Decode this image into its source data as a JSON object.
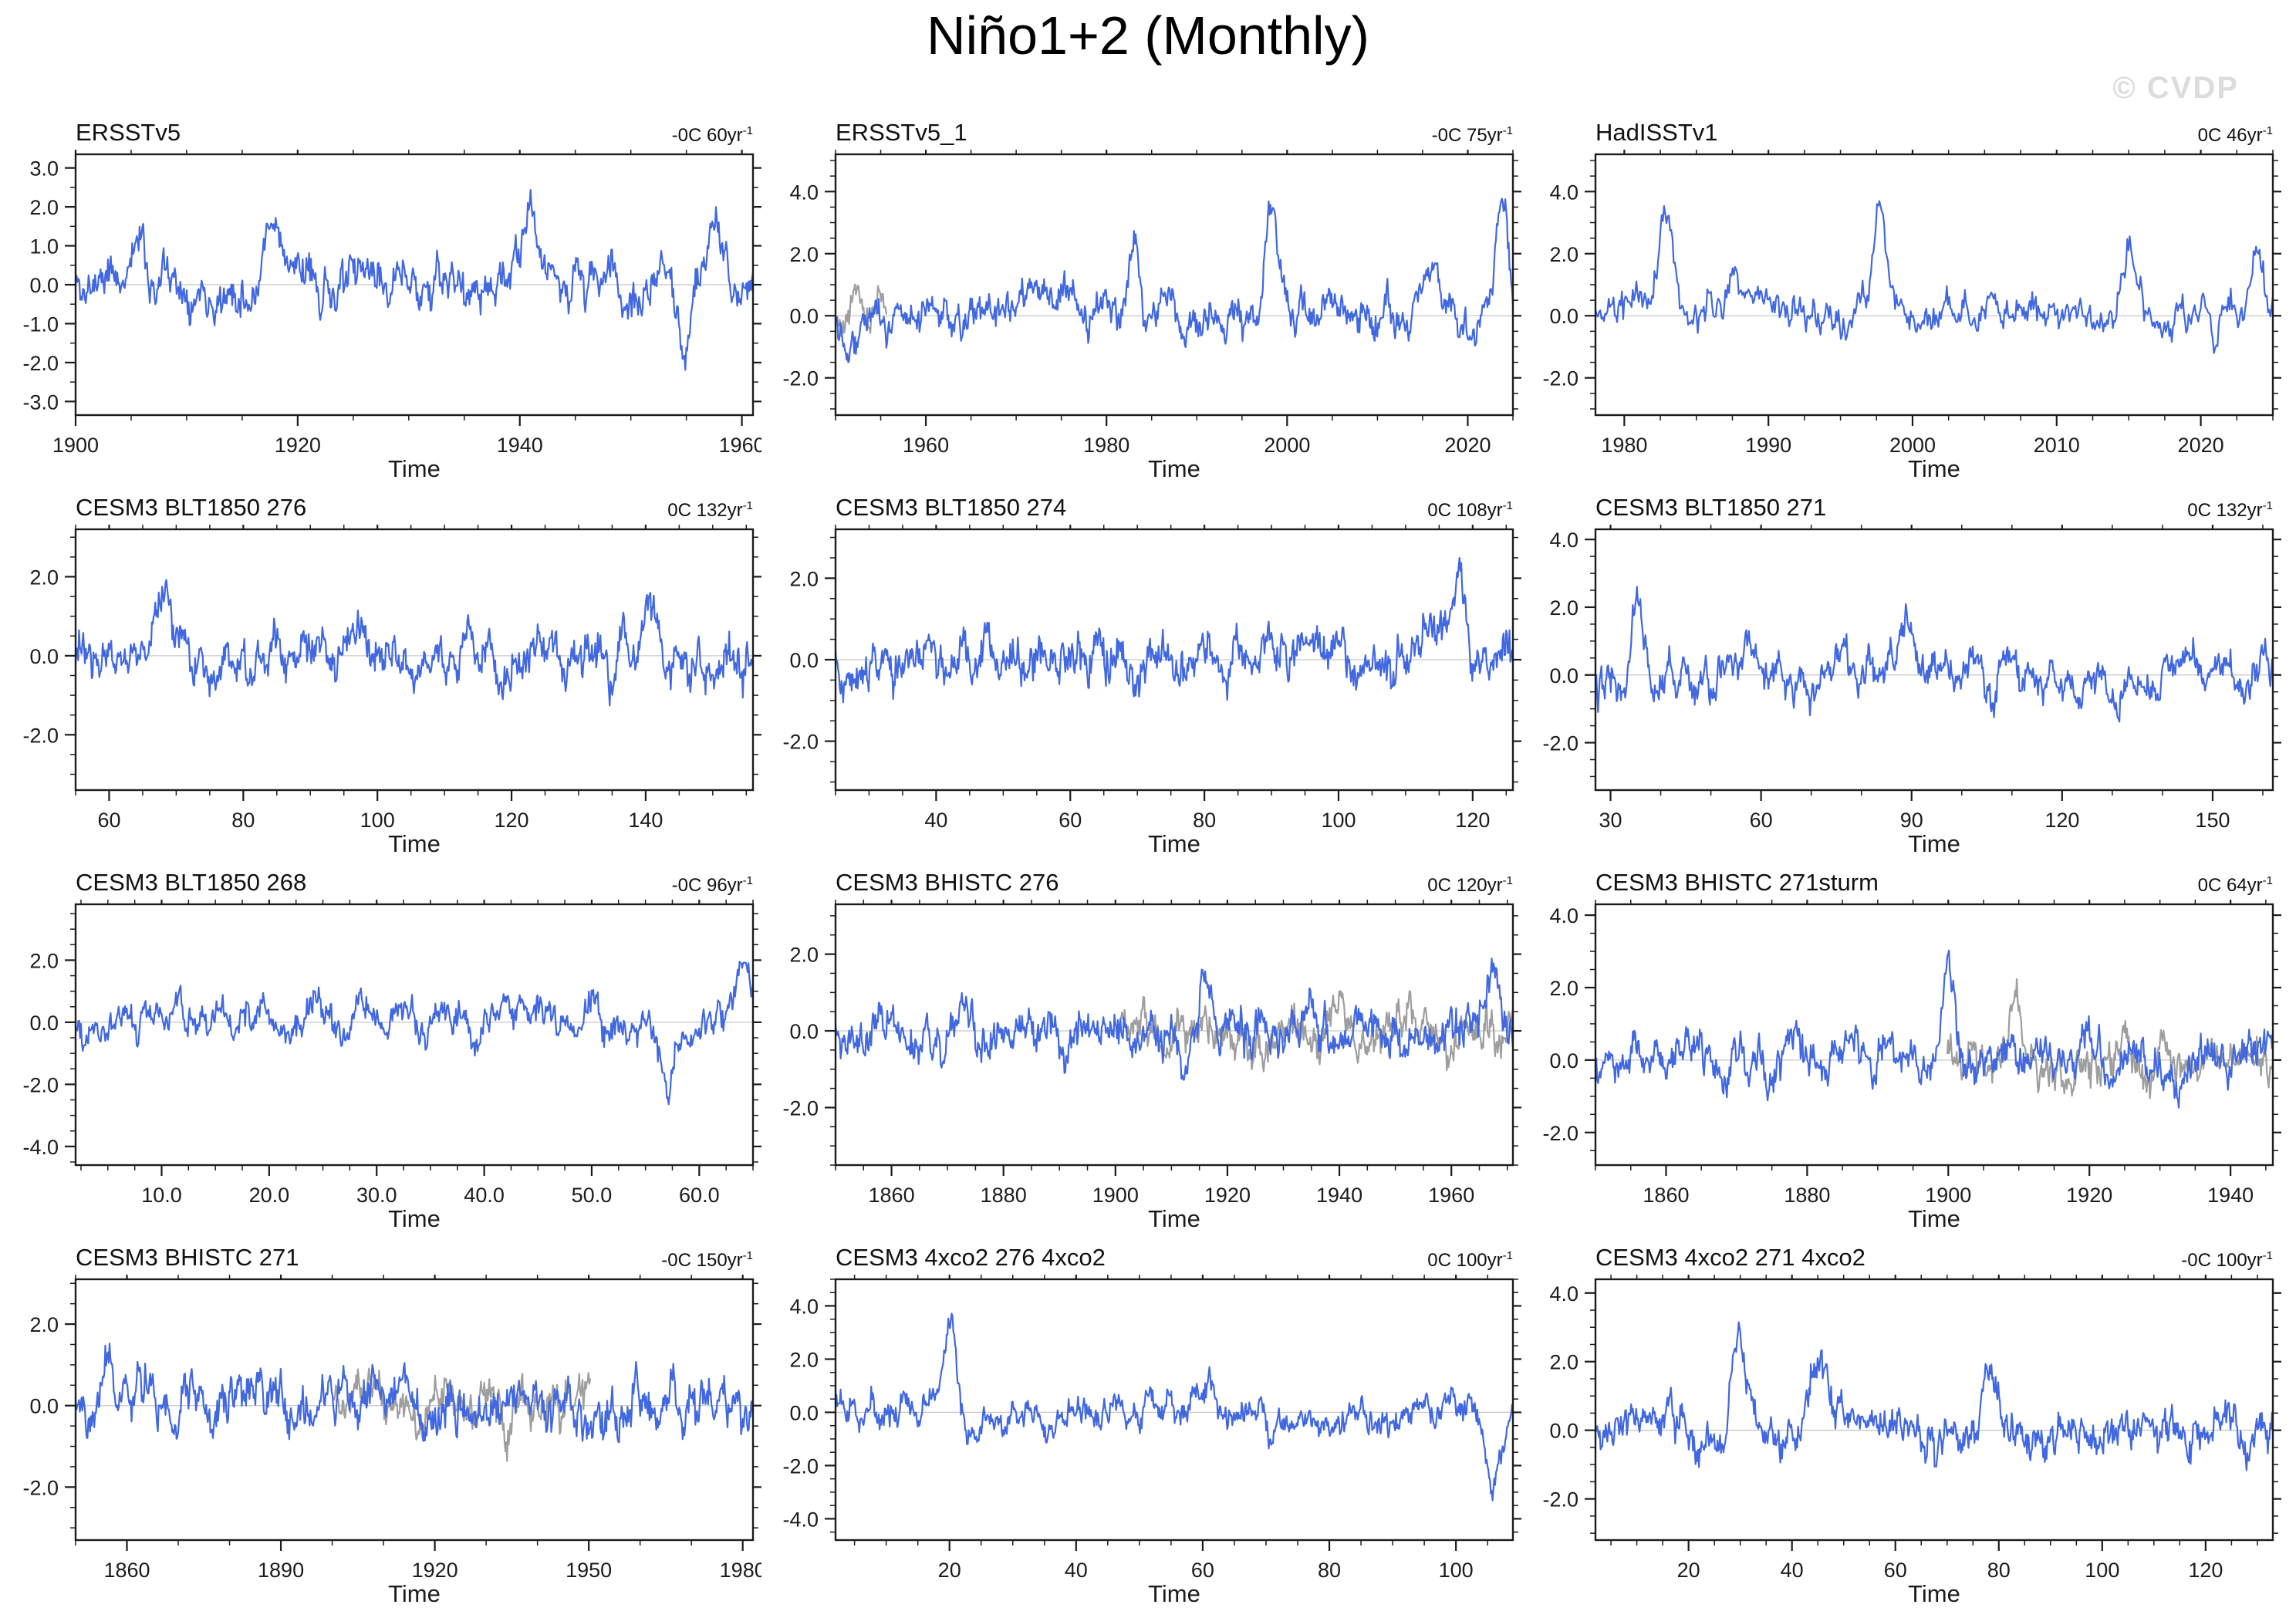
{
  "header": {
    "title": "Niño1+2 (Monthly)",
    "watermark": "© CVDP"
  },
  "colors": {
    "line_primary": "#4168e0",
    "line_secondary": "#9e9e9e",
    "zero_line": "#c8c8c8",
    "axis": "#1c1c1c",
    "text": "#1c1c1c",
    "watermark": "#dcdcdc"
  },
  "chart_data": [
    {
      "type": "line",
      "name": "ERSSTv5",
      "trend": "-0C 60yr",
      "trend_sup": "-1",
      "xlabel": "Time",
      "x_range": [
        1900,
        1961
      ],
      "x_tick_values": [
        1900,
        1920,
        1940,
        1960
      ],
      "x_ticks": [
        "1900",
        "1920",
        "1940",
        "1960"
      ],
      "x_minor_step": 5,
      "y_range": [
        -3.35,
        3.35
      ],
      "y_tick_values": [
        3,
        2,
        1,
        0,
        -1,
        -2,
        -3
      ],
      "y_ticks": [
        "3.0",
        "2.0",
        "1.0",
        "0.0",
        "-1.0",
        "-2.0",
        "-3.0"
      ],
      "y_minor_step": 0.5,
      "series": {
        "seed": 11,
        "n": 732,
        "ar": 0.88,
        "sigma": 0.45,
        "jitter": 0.5,
        "peaks": [
          {
            "pos": 0.09,
            "amp": 1.2,
            "w": 0.01
          },
          {
            "pos": 0.29,
            "amp": 2.0,
            "w": 0.012
          },
          {
            "pos": 0.67,
            "amp": 1.4,
            "w": 0.012
          },
          {
            "pos": 0.9,
            "amp": -1.4,
            "w": 0.008
          },
          {
            "pos": 0.94,
            "amp": 1.6,
            "w": 0.01
          }
        ]
      },
      "gray": null
    },
    {
      "type": "line",
      "name": "ERSSTv5_1",
      "trend": "-0C 75yr",
      "trend_sup": "-1",
      "xlabel": "Time",
      "x_range": [
        1950,
        2025
      ],
      "x_tick_values": [
        1960,
        1980,
        2000,
        2020
      ],
      "x_ticks": [
        "1960",
        "1980",
        "2000",
        "2020"
      ],
      "x_minor_step": 5,
      "y_range": [
        -3.2,
        5.2
      ],
      "y_tick_values": [
        4,
        2,
        0,
        -2
      ],
      "y_ticks": [
        "4.0",
        "2.0",
        "0.0",
        "-2.0"
      ],
      "y_minor_step": 0.5,
      "series": {
        "seed": 22,
        "n": 800,
        "ar": 0.88,
        "sigma": 0.45,
        "jitter": 0.5,
        "peaks": [
          {
            "pos": 0.3,
            "amp": 1.6,
            "w": 0.012
          },
          {
            "pos": 0.44,
            "amp": 3.2,
            "w": 0.009
          },
          {
            "pos": 0.645,
            "amp": 3.3,
            "w": 0.009
          },
          {
            "pos": 0.88,
            "amp": 1.6,
            "w": 0.012
          },
          {
            "pos": 0.985,
            "amp": 3.1,
            "w": 0.008
          }
        ]
      },
      "gray": {
        "seed": 202,
        "frac": [
          0.0,
          0.075
        ],
        "peaks": []
      }
    },
    {
      "type": "line",
      "name": "HadISSTv1",
      "trend": "0C 46yr",
      "trend_sup": "-1",
      "xlabel": "Time",
      "x_range": [
        1978,
        2025
      ],
      "x_tick_values": [
        1980,
        1990,
        2000,
        2010,
        2020
      ],
      "x_ticks": [
        "1980",
        "1990",
        "2000",
        "2010",
        "2020"
      ],
      "x_minor_step": 2.5,
      "y_range": [
        -3.2,
        5.2
      ],
      "y_tick_values": [
        4,
        2,
        0,
        -2
      ],
      "y_ticks": [
        "4.0",
        "2.0",
        "0.0",
        "-2.0"
      ],
      "y_minor_step": 0.5,
      "series": {
        "seed": 33,
        "n": 564,
        "ar": 0.88,
        "sigma": 0.45,
        "jitter": 0.5,
        "peaks": [
          {
            "pos": 0.105,
            "amp": 3.6,
            "w": 0.01
          },
          {
            "pos": 0.205,
            "amp": 1.5,
            "w": 0.012
          },
          {
            "pos": 0.42,
            "amp": 3.7,
            "w": 0.009
          },
          {
            "pos": 0.79,
            "amp": 1.9,
            "w": 0.012
          },
          {
            "pos": 0.975,
            "amp": 2.0,
            "w": 0.008
          }
        ]
      },
      "gray": null
    },
    {
      "type": "line",
      "name": "CESM3 BLT1850 276",
      "trend": "0C 132yr",
      "trend_sup": "-1",
      "xlabel": "Time",
      "x_range": [
        55,
        156
      ],
      "x_tick_values": [
        60,
        80,
        100,
        120,
        140
      ],
      "x_ticks": [
        "60",
        "80",
        "100",
        "120",
        "140"
      ],
      "x_minor_step": 5,
      "y_range": [
        -3.4,
        3.2
      ],
      "y_tick_values": [
        2,
        0,
        -2
      ],
      "y_ticks": [
        "2.0",
        "0.0",
        "-2.0"
      ],
      "y_minor_step": 0.5,
      "series": {
        "seed": 44,
        "n": 800,
        "ar": 0.88,
        "sigma": 0.45,
        "jitter": 0.5,
        "peaks": [
          {
            "pos": 0.13,
            "amp": 1.5,
            "w": 0.01
          },
          {
            "pos": 0.85,
            "amp": 1.4,
            "w": 0.01
          }
        ]
      },
      "gray": null
    },
    {
      "type": "line",
      "name": "CESM3 BLT1850 274",
      "trend": "0C 108yr",
      "trend_sup": "-1",
      "xlabel": "Time",
      "x_range": [
        25,
        126
      ],
      "x_tick_values": [
        40,
        60,
        80,
        100,
        120
      ],
      "x_ticks": [
        "40",
        "60",
        "80",
        "100",
        "120"
      ],
      "x_minor_step": 5,
      "y_range": [
        -3.2,
        3.2
      ],
      "y_tick_values": [
        2,
        0,
        -2
      ],
      "y_ticks": [
        "2.0",
        "0.0",
        "-2.0"
      ],
      "y_minor_step": 0.5,
      "series": {
        "seed": 55,
        "n": 800,
        "ar": 0.88,
        "sigma": 0.45,
        "jitter": 0.5,
        "peaks": [
          {
            "pos": 0.92,
            "amp": 1.8,
            "w": 0.009
          }
        ]
      },
      "gray": null
    },
    {
      "type": "line",
      "name": "CESM3 BLT1850 271",
      "trend": "0C 132yr",
      "trend_sup": "-1",
      "xlabel": "Time",
      "x_range": [
        27,
        162
      ],
      "x_tick_values": [
        30,
        60,
        90,
        120,
        150
      ],
      "x_ticks": [
        "30",
        "60",
        "90",
        "120",
        "150"
      ],
      "x_minor_step": 10,
      "y_range": [
        -3.4,
        4.3
      ],
      "y_tick_values": [
        4,
        2,
        0,
        -2
      ],
      "y_ticks": [
        "4.0",
        "2.0",
        "0.0",
        "-2.0"
      ],
      "y_minor_step": 0.5,
      "series": {
        "seed": 66,
        "n": 800,
        "ar": 0.88,
        "sigma": 0.45,
        "jitter": 0.5,
        "peaks": [
          {
            "pos": 0.06,
            "amp": 2.4,
            "w": 0.01
          },
          {
            "pos": 0.46,
            "amp": 1.6,
            "w": 0.01
          }
        ]
      },
      "gray": null
    },
    {
      "type": "line",
      "name": "CESM3 BLT1850 268",
      "trend": "-0C 96yr",
      "trend_sup": "-1",
      "xlabel": "Time",
      "x_range": [
        2,
        65
      ],
      "x_tick_values": [
        10,
        20,
        30,
        40,
        50,
        60
      ],
      "x_ticks": [
        "10.0",
        "20.0",
        "30.0",
        "40.0",
        "50.0",
        "60.0"
      ],
      "x_minor_step": 2.5,
      "y_range": [
        -4.6,
        3.8
      ],
      "y_tick_values": [
        2,
        0,
        -2,
        -4
      ],
      "y_ticks": [
        "2.0",
        "0.0",
        "-2.0",
        "-4.0"
      ],
      "y_minor_step": 0.5,
      "series": {
        "seed": 77,
        "n": 756,
        "ar": 0.88,
        "sigma": 0.45,
        "jitter": 0.5,
        "peaks": [
          {
            "pos": 0.875,
            "amp": -2.2,
            "w": 0.009
          },
          {
            "pos": 0.985,
            "amp": 2.0,
            "w": 0.009
          }
        ]
      },
      "gray": null
    },
    {
      "type": "line",
      "name": "CESM3 BHISTC 276",
      "trend": "0C 120yr",
      "trend_sup": "-1",
      "xlabel": "Time",
      "x_range": [
        1850,
        1971
      ],
      "x_tick_values": [
        1860,
        1880,
        1900,
        1920,
        1940,
        1960
      ],
      "x_ticks": [
        "1860",
        "1880",
        "1900",
        "1920",
        "1940",
        "1960"
      ],
      "x_minor_step": 5,
      "y_range": [
        -3.5,
        3.3
      ],
      "y_tick_values": [
        2,
        0,
        -2
      ],
      "y_ticks": [
        "2.0",
        "0.0",
        "-2.0"
      ],
      "y_minor_step": 0.5,
      "series": {
        "seed": 88,
        "n": 800,
        "ar": 0.88,
        "sigma": 0.45,
        "jitter": 0.5,
        "peaks": [
          {
            "pos": 0.55,
            "amp": 1.6,
            "w": 0.01
          },
          {
            "pos": 0.97,
            "amp": 1.8,
            "w": 0.009
          }
        ]
      },
      "gray": {
        "seed": 208,
        "frac": [
          0.42,
          1.0
        ],
        "peaks": []
      }
    },
    {
      "type": "line",
      "name": "CESM3 BHISTC 271sturm",
      "trend": "0C 64yr",
      "trend_sup": "-1",
      "xlabel": "Time",
      "x_range": [
        1850,
        1946
      ],
      "x_tick_values": [
        1860,
        1880,
        1900,
        1920,
        1940
      ],
      "x_ticks": [
        "1860",
        "1880",
        "1900",
        "1920",
        "1940"
      ],
      "x_minor_step": 5,
      "y_range": [
        -2.9,
        4.3
      ],
      "y_tick_values": [
        4,
        2,
        0,
        -2
      ],
      "y_ticks": [
        "4.0",
        "2.0",
        "0.0",
        "-2.0"
      ],
      "y_minor_step": 0.5,
      "series": {
        "seed": 99,
        "n": 800,
        "ar": 0.88,
        "sigma": 0.45,
        "jitter": 0.5,
        "peaks": [
          {
            "pos": 0.52,
            "amp": 2.3,
            "w": 0.009
          }
        ]
      },
      "gray": {
        "seed": 209,
        "frac": [
          0.52,
          1.0
        ],
        "peaks": [
          {
            "pos": 0.62,
            "amp": 1.6,
            "w": 0.01
          }
        ]
      }
    },
    {
      "type": "line",
      "name": "CESM3 BHISTC 271",
      "trend": "-0C 150yr",
      "trend_sup": "-1",
      "xlabel": "Time",
      "x_range": [
        1850,
        1982
      ],
      "x_tick_values": [
        1860,
        1890,
        1920,
        1950,
        1980
      ],
      "x_ticks": [
        "1860",
        "1890",
        "1920",
        "1950",
        "1980"
      ],
      "x_minor_step": 10,
      "y_range": [
        -3.3,
        3.1
      ],
      "y_tick_values": [
        2,
        0,
        -2
      ],
      "y_ticks": [
        "2.0",
        "0.0",
        "-2.0"
      ],
      "y_minor_step": 0.5,
      "series": {
        "seed": 110,
        "n": 800,
        "ar": 0.88,
        "sigma": 0.45,
        "jitter": 0.5,
        "peaks": []
      },
      "gray": {
        "seed": 210,
        "frac": [
          0.38,
          0.76
        ],
        "peaks": []
      }
    },
    {
      "type": "line",
      "name": "CESM3 4xco2 276 4xco2",
      "trend": "0C 100yr",
      "trend_sup": "-1",
      "xlabel": "Time",
      "x_range": [
        2,
        109
      ],
      "x_tick_values": [
        20,
        40,
        60,
        80,
        100
      ],
      "x_ticks": [
        "20",
        "40",
        "60",
        "80",
        "100"
      ],
      "x_minor_step": 5,
      "y_range": [
        -4.8,
        5.0
      ],
      "y_tick_values": [
        4,
        2,
        0,
        -2,
        -4
      ],
      "y_ticks": [
        "4.0",
        "2.0",
        "0.0",
        "-2.0",
        "-4.0"
      ],
      "y_minor_step": 0.5,
      "series": {
        "seed": 111,
        "n": 800,
        "ar": 0.88,
        "sigma": 0.45,
        "jitter": 0.5,
        "peaks": [
          {
            "pos": 0.17,
            "amp": 3.4,
            "w": 0.01
          },
          {
            "pos": 0.55,
            "amp": 1.5,
            "w": 0.012
          },
          {
            "pos": 0.97,
            "amp": -2.6,
            "w": 0.01
          }
        ]
      },
      "gray": null
    },
    {
      "type": "line",
      "name": "CESM3 4xco2 271 4xco2",
      "trend": "-0C 100yr",
      "trend_sup": "-1",
      "xlabel": "Time",
      "x_range": [
        2,
        133
      ],
      "x_tick_values": [
        20,
        40,
        60,
        80,
        100,
        120
      ],
      "x_ticks": [
        "20",
        "40",
        "60",
        "80",
        "100",
        "120"
      ],
      "x_minor_step": 5,
      "y_range": [
        -3.2,
        4.4
      ],
      "y_tick_values": [
        4,
        2,
        0,
        -2
      ],
      "y_ticks": [
        "4.0",
        "2.0",
        "0.0",
        "-2.0"
      ],
      "y_minor_step": 0.5,
      "series": {
        "seed": 112,
        "n": 800,
        "ar": 0.88,
        "sigma": 0.45,
        "jitter": 0.5,
        "peaks": [
          {
            "pos": 0.21,
            "amp": 2.6,
            "w": 0.01
          },
          {
            "pos": 0.33,
            "amp": 1.8,
            "w": 0.01
          },
          {
            "pos": 0.58,
            "amp": 2.4,
            "w": 0.01
          }
        ]
      },
      "gray": null
    }
  ]
}
